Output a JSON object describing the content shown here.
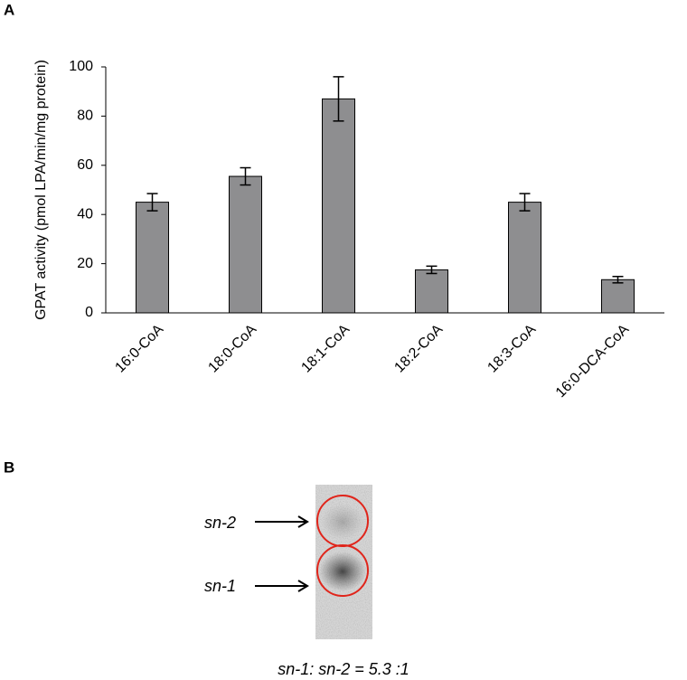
{
  "panel_labels": [
    "A",
    "B"
  ],
  "chart_data": {
    "type": "bar",
    "y_label": "GPAT activity (pmol LPA/min/mg protein)",
    "categories": [
      "16:0-CoA",
      "18:0-CoA",
      "18:1-CoA",
      "18:2-CoA",
      "18:3-CoA",
      "16:0-DCA-CoA"
    ],
    "values": [
      45,
      55.5,
      87,
      17.5,
      45,
      13.5
    ],
    "errors": [
      3.5,
      3.5,
      9,
      1.5,
      3.5,
      1.3
    ],
    "color": "#8e8e90",
    "ylim": [
      0,
      100
    ],
    "yticks": [
      0,
      20,
      40,
      60,
      80,
      100
    ],
    "grid": false
  },
  "blot": {
    "labels": [
      "sn-2",
      "sn-1"
    ],
    "caption": "sn-1: sn-2 = 5.3 :1"
  }
}
